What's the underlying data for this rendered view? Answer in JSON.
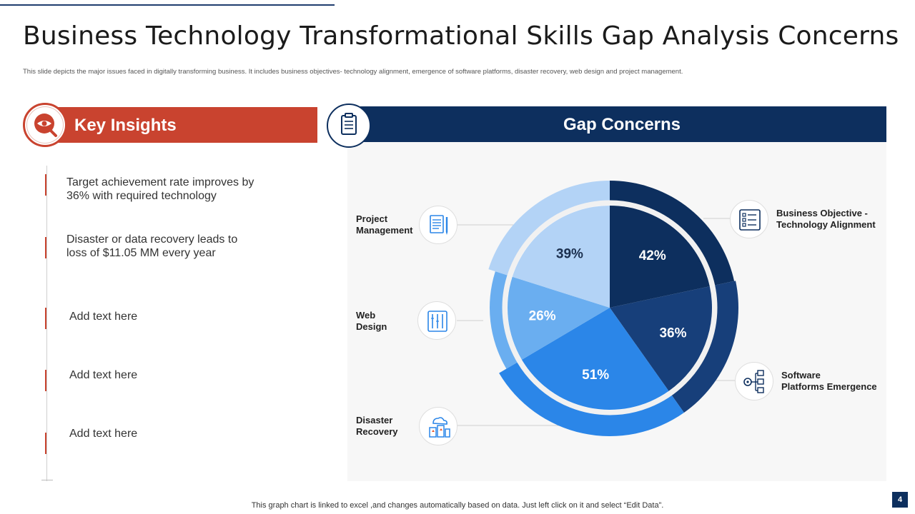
{
  "slide": {
    "title": "Business Technology Transformational Skills Gap Analysis Concerns",
    "subtitle": "This slide depicts the major issues faced in digitally transforming business. It includes business objectives- technology alignment, emergence of software platforms, disaster recovery, web design and project management.",
    "footer": "This graph chart is linked to excel ,and changes automatically based on data. Just left click on it and select “Edit Data”.",
    "page_number": "4"
  },
  "key_insights": {
    "title": "Key Insights",
    "icon": "eye-search-icon",
    "items": [
      {
        "line1": "Target achievement rate improves by",
        "line2": "36% with required technology"
      },
      {
        "line1": "Disaster or data recovery leads to",
        "line2": "loss of $11.05 MM every year"
      },
      {
        "line1": "Add text here",
        "line2": ""
      },
      {
        "line1": "Add text here",
        "line2": ""
      },
      {
        "line1": "Add text here",
        "line2": ""
      }
    ]
  },
  "gap_concerns": {
    "title": "Gap Concerns",
    "icon": "clipboard-icon",
    "labels": [
      {
        "line1": "Project",
        "line2": "Management",
        "icon": "document-pen-icon"
      },
      {
        "line1": "Web",
        "line2": "Design",
        "icon": "design-tools-icon"
      },
      {
        "line1": "Disaster",
        "line2": "Recovery",
        "icon": "cloud-building-icon"
      },
      {
        "line1": "Business  Objective -",
        "line2": "Technology Alignment",
        "icon": "checklist-icon"
      },
      {
        "line1": "Software",
        "line2": "Platforms Emergence",
        "icon": "network-gear-icon"
      }
    ]
  },
  "colors": {
    "accent_red": "#c9432f",
    "navy": "#0d2f5e",
    "dark_blue": "#173f7a",
    "mid_blue": "#2b86e8",
    "light_blue": "#6aaef0",
    "pale_blue": "#b3d3f6"
  },
  "chart_data": {
    "type": "pie",
    "note_outer": "outer ring segments",
    "inner": [
      {
        "category": "Business Objective - Technology Alignment",
        "value": 42,
        "label": "42%"
      },
      {
        "category": "Software Platforms Emergence",
        "value": 36,
        "label": "36%"
      },
      {
        "category": "Disaster Recovery",
        "value": 51,
        "label": "51%"
      },
      {
        "category": "Web Design",
        "value": 26,
        "label": "26%"
      },
      {
        "category": "Project Management",
        "value": 39,
        "label": "39%"
      }
    ]
  }
}
